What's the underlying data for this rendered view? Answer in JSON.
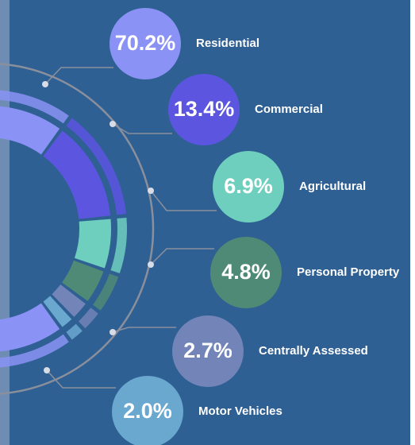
{
  "chart_data": {
    "type": "donut",
    "categories": [
      "Residential",
      "Commercial",
      "Agricultural",
      "Personal Property",
      "Centrally Assessed",
      "Motor Vehicles"
    ],
    "values": [
      70.2,
      13.4,
      6.9,
      4.8,
      2.7,
      2.0
    ],
    "value_labels": [
      "70.2%",
      "13.4%",
      "6.9%",
      "4.8%",
      "2.7%",
      "2.0%"
    ],
    "colors": [
      "#8a93f5",
      "#5b55e0",
      "#6fcfbf",
      "#4f8a76",
      "#7284b8",
      "#6aa8d0"
    ]
  }
}
